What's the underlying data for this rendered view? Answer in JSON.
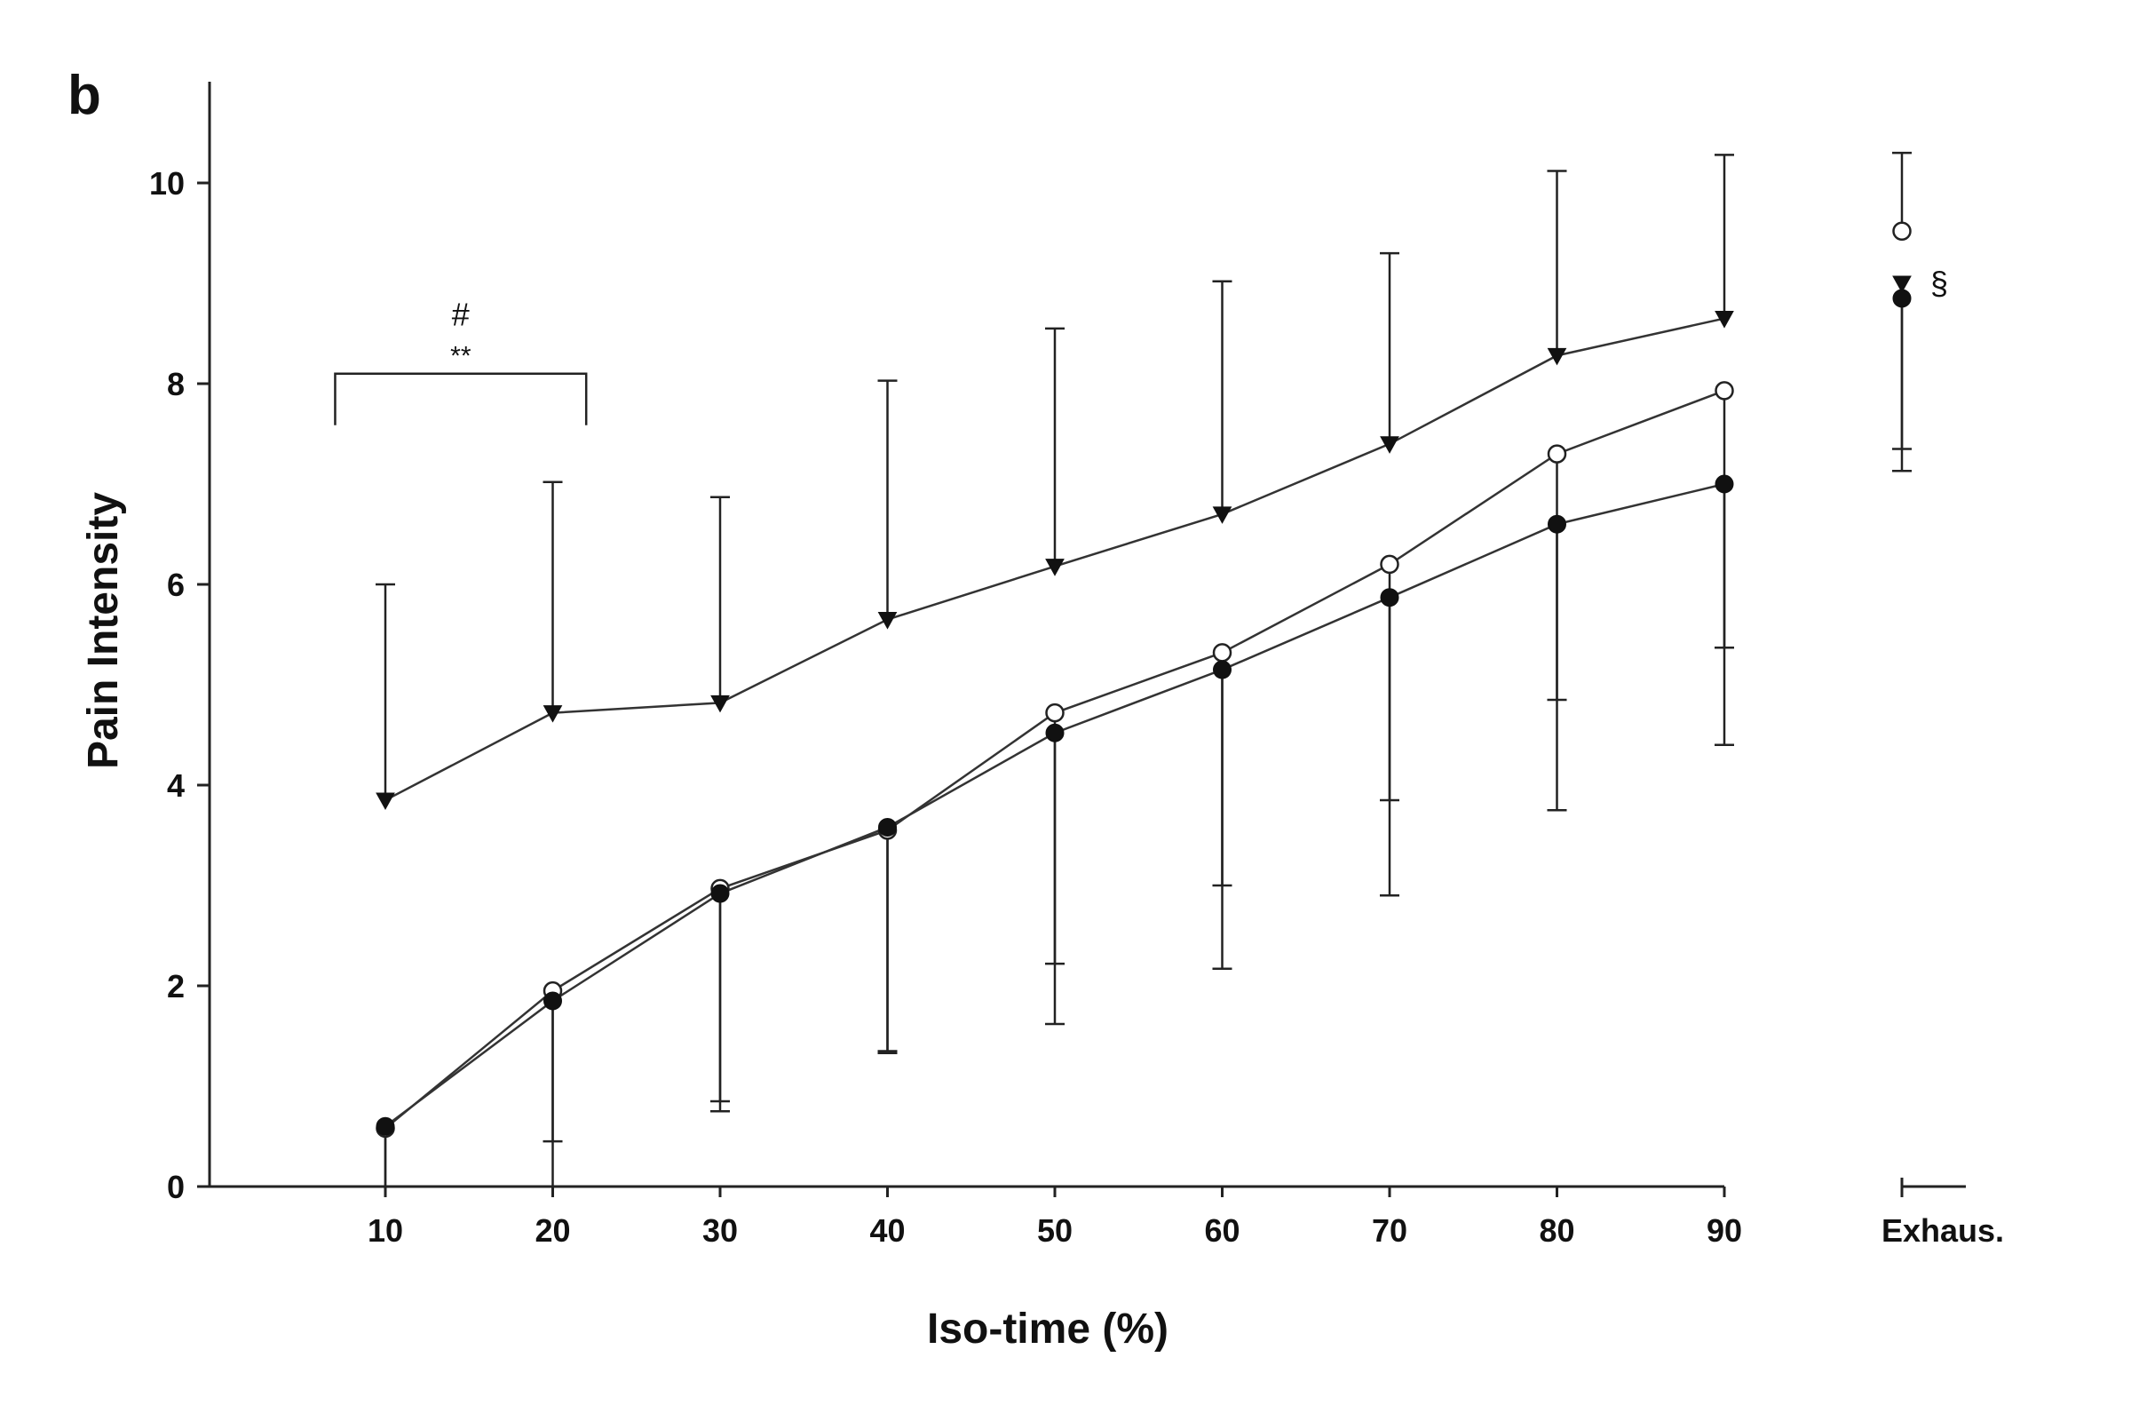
{
  "panel_label": "b",
  "chart_data": {
    "type": "line",
    "title": "",
    "xlabel": "Iso-time (%)",
    "ylabel": "Pain Intensity",
    "x": [
      10,
      20,
      30,
      40,
      50,
      60,
      70,
      80,
      90
    ],
    "x_tick_labels": [
      "10",
      "20",
      "30",
      "40",
      "50",
      "60",
      "70",
      "80",
      "90"
    ],
    "extra_x_label": "Exhaus.",
    "ylim": [
      0,
      11
    ],
    "yticks": [
      0,
      2,
      4,
      6,
      8,
      10
    ],
    "grid": false,
    "legend": "none",
    "series": [
      {
        "marker": "triangle-down-filled",
        "values": [
          3.85,
          4.72,
          4.82,
          5.65,
          6.18,
          6.7,
          7.4,
          8.28,
          8.65
        ],
        "error_upper": [
          6.0,
          7.02,
          6.87,
          8.03,
          8.55,
          9.02,
          9.3,
          10.12,
          10.28
        ],
        "exhaus": {
          "value": 9.0,
          "error_lower": 7.35
        }
      },
      {
        "marker": "circle-open",
        "values": [
          0.58,
          1.95,
          2.97,
          3.55,
          4.72,
          5.32,
          6.2,
          7.3,
          7.93
        ],
        "error_lower": [
          0.0,
          0.45,
          0.85,
          1.35,
          2.22,
          3.0,
          3.85,
          4.85,
          5.37
        ],
        "exhaus": {
          "value": 9.52,
          "error_upper": 10.3
        }
      },
      {
        "marker": "circle-filled",
        "values": [
          0.6,
          1.85,
          2.92,
          3.58,
          4.52,
          5.15,
          5.87,
          6.6,
          7.0
        ],
        "error_lower": [
          0.0,
          0.0,
          0.75,
          1.33,
          1.62,
          2.17,
          2.9,
          3.75,
          4.4
        ],
        "exhaus": {
          "value": 8.85,
          "error_lower": 7.13
        }
      }
    ],
    "annotations": {
      "bracket_x": [
        7,
        22
      ],
      "bracket_y": 8.1,
      "bracket_symbol": "#",
      "bracket_stars": "**",
      "exhaus_symbol": "§"
    }
  }
}
